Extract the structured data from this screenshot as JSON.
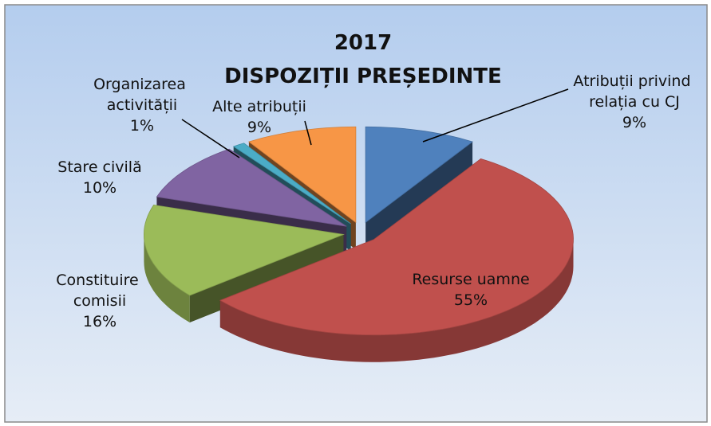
{
  "chart_data": {
    "type": "pie3d",
    "title": "2017",
    "subtitle": "DISPOZIȚII PREȘEDINTE",
    "categories": [
      "Atribuții privind relația cu CJ",
      "Resurse uamne",
      "Constituire comisii",
      "Stare civilă",
      "Organizarea activității",
      "Alte atribuții"
    ],
    "values": [
      9,
      55,
      16,
      10,
      1,
      9
    ],
    "value_labels": [
      "9%",
      "55%",
      "16%",
      "10%",
      "1%",
      "9%"
    ],
    "colors": [
      "#4f81bd",
      "#c0504d",
      "#9bbb59",
      "#8064a2",
      "#4bacc6",
      "#f79646"
    ]
  }
}
